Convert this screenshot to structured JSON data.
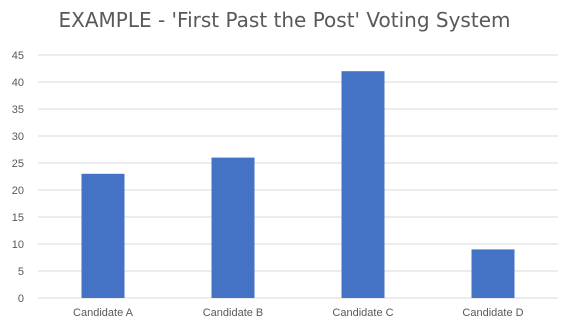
{
  "chart_data": {
    "type": "bar",
    "title": "EXAMPLE - 'First Past the Post' Voting System",
    "categories": [
      "Candidate A",
      "Candidate B",
      "Candidate C",
      "Candidate D"
    ],
    "values": [
      23,
      26,
      42,
      9
    ],
    "ylim": [
      0,
      45
    ],
    "yticks": [
      0,
      5,
      10,
      15,
      20,
      25,
      30,
      35,
      40,
      45
    ],
    "grid": true,
    "bar_color": "#4472C4",
    "grid_color": "#D9D9D9"
  }
}
